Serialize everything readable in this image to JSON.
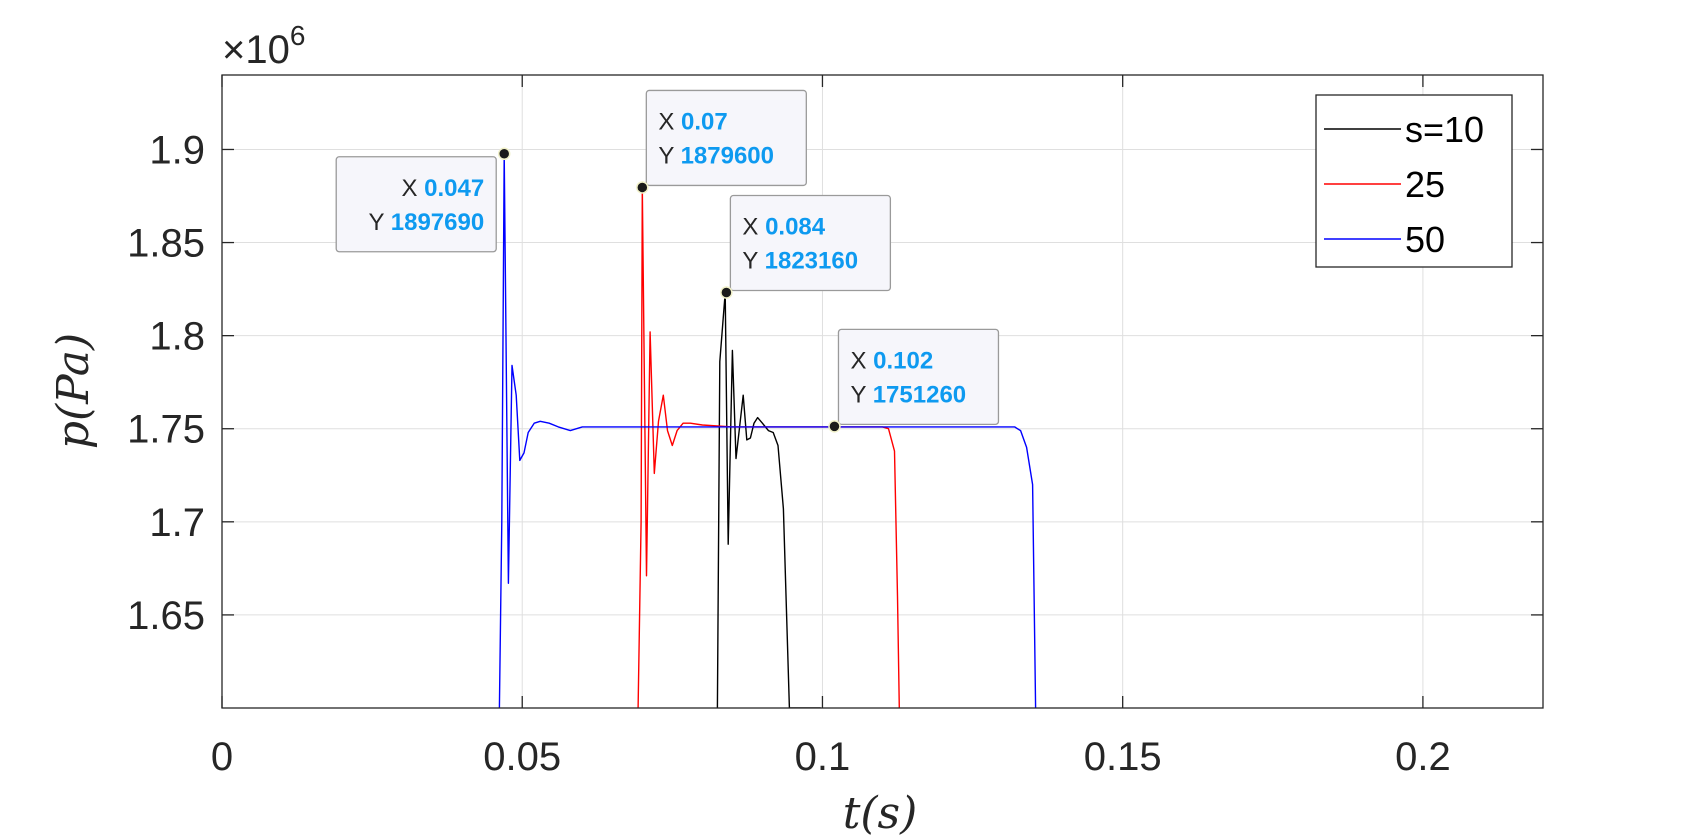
{
  "chart_data": {
    "type": "line",
    "xlabel": "t(s)",
    "ylabel": "p(Pa)",
    "y_exponent_label": "×10",
    "y_exponent_power": "6",
    "xlim": [
      0,
      0.22
    ],
    "ylim": [
      1.6,
      1.94
    ],
    "x_ticks": [
      0,
      0.05,
      0.1,
      0.15,
      0.2
    ],
    "x_tick_labels": [
      "0",
      "0.05",
      "0.1",
      "0.15",
      "0.2"
    ],
    "y_ticks": [
      1.65,
      1.7,
      1.75,
      1.8,
      1.85,
      1.9
    ],
    "y_tick_labels": [
      "1.65",
      "1.7",
      "1.75",
      "1.8",
      "1.85",
      "1.9"
    ],
    "grid": true,
    "legend_position": "top-right",
    "series": [
      {
        "name": "s=10",
        "color": "#000000",
        "x": [
          0.0825,
          0.0829,
          0.0838,
          0.0843,
          0.085,
          0.0856,
          0.0862,
          0.0868,
          0.0874,
          0.088,
          0.0886,
          0.0892,
          0.09,
          0.091,
          0.0918,
          0.0926,
          0.0935,
          0.0945,
          0.0955,
          0.0965,
          0.0972,
          0.0978,
          0.0985,
          0.0993,
          0.0997
        ],
        "y": [
          1.6,
          1.786,
          1.823,
          1.688,
          1.792,
          1.734,
          1.751,
          1.768,
          1.744,
          1.745,
          1.753,
          1.756,
          1.753,
          1.749,
          1.748,
          1.741,
          1.707,
          1.6,
          1.6,
          1.6,
          1.6,
          1.6,
          1.6,
          1.6,
          1.6
        ]
      },
      {
        "name": "25",
        "color": "#ff0000",
        "x": [
          0.0693,
          0.0698,
          0.07,
          0.0707,
          0.0713,
          0.072,
          0.0727,
          0.0735,
          0.0742,
          0.075,
          0.0758,
          0.0768,
          0.078,
          0.08,
          0.085,
          0.09,
          0.095,
          0.1,
          0.105,
          0.108,
          0.11,
          0.111,
          0.112,
          0.1125,
          0.1128
        ],
        "y": [
          1.6,
          1.7,
          1.8796,
          1.671,
          1.802,
          1.726,
          1.754,
          1.768,
          1.749,
          1.741,
          1.749,
          1.753,
          1.753,
          1.752,
          1.751,
          1.751,
          1.751,
          1.751,
          1.751,
          1.751,
          1.751,
          1.75,
          1.738,
          1.66,
          1.6
        ]
      },
      {
        "name": "50",
        "color": "#0000ff",
        "x": [
          0.0462,
          0.0466,
          0.047,
          0.0477,
          0.0483,
          0.049,
          0.0496,
          0.0503,
          0.051,
          0.052,
          0.053,
          0.0545,
          0.056,
          0.058,
          0.06,
          0.065,
          0.07,
          0.08,
          0.09,
          0.1,
          0.11,
          0.12,
          0.13,
          0.132,
          0.133,
          0.134,
          0.135,
          0.1355
        ],
        "y": [
          1.6,
          1.7,
          1.8977,
          1.667,
          1.784,
          1.768,
          1.733,
          1.737,
          1.748,
          1.753,
          1.754,
          1.753,
          1.751,
          1.749,
          1.751,
          1.751,
          1.751,
          1.751,
          1.751,
          1.751,
          1.751,
          1.751,
          1.751,
          1.751,
          1.749,
          1.74,
          1.72,
          1.6
        ]
      }
    ],
    "datatips": [
      {
        "x_key": "X",
        "x_val": "0.047",
        "y_key": "Y",
        "y_val": "1897690",
        "px": 0.047,
        "py": 1.89769,
        "align": "left"
      },
      {
        "x_key": "X",
        "x_val": "0.07",
        "y_key": "Y",
        "y_val": "1879600",
        "px": 0.07,
        "py": 1.8796,
        "align": "right"
      },
      {
        "x_key": "X",
        "x_val": "0.084",
        "y_key": "Y",
        "y_val": "1823160",
        "px": 0.084,
        "py": 1.82316,
        "align": "right"
      },
      {
        "x_key": "X",
        "x_val": "0.102",
        "y_key": "Y",
        "y_val": "1751260",
        "px": 0.102,
        "py": 1.75126,
        "align": "right"
      }
    ]
  }
}
